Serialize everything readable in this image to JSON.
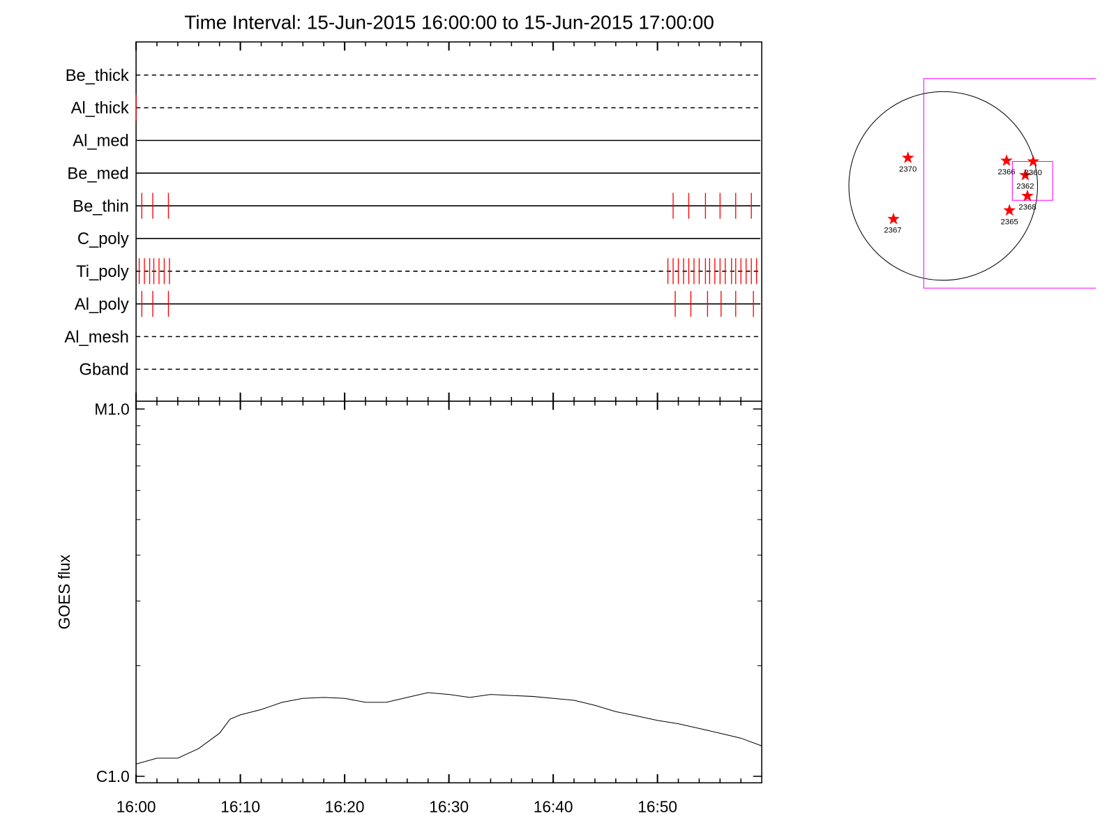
{
  "chart_data": [
    {
      "type": "timeline",
      "title": "Time Interval: 15-Jun-2015 16:00:00 to 15-Jun-2015 17:00:00",
      "categories": [
        "Be_thick",
        "Al_thick",
        "Al_med",
        "Be_med",
        "Be_thin",
        "C_poly",
        "Ti_poly",
        "Al_poly",
        "Al_mesh",
        "Gband"
      ],
      "line_styles": [
        "dashed",
        "dashed",
        "solid",
        "solid",
        "solid",
        "solid",
        "dashed",
        "solid",
        "dashed",
        "dashed"
      ],
      "events": [
        [],
        [
          0
        ],
        [],
        [],
        [
          0.55,
          1.6,
          3.1,
          51.5,
          53.0,
          54.6,
          56.0,
          57.5,
          59.0
        ],
        [],
        [
          0.3,
          0.8,
          1.3,
          1.7,
          2.2,
          2.7,
          3.2,
          51.0,
          51.5,
          52.0,
          52.5,
          53.0,
          53.5,
          54.0,
          54.6,
          55.0,
          55.5,
          56.0,
          56.5,
          57.1,
          57.5,
          58.0,
          58.5,
          59.0,
          59.5
        ],
        [
          0.55,
          1.6,
          3.1,
          51.7,
          53.2,
          54.8,
          56.1,
          57.5,
          59.2
        ],
        [],
        []
      ],
      "event_color": "#ff0000",
      "xlim": [
        0,
        60
      ],
      "xticks": [
        0,
        10,
        20,
        30,
        40,
        50
      ],
      "xminorticks": [
        2,
        4,
        6,
        8,
        12,
        14,
        16,
        18,
        22,
        24,
        26,
        28,
        32,
        34,
        36,
        38,
        42,
        44,
        46,
        48,
        52,
        54,
        56,
        58
      ]
    },
    {
      "type": "line",
      "ylabel": "GOES flux",
      "log_scale": true,
      "x": [
        0,
        2,
        4,
        6,
        8,
        9,
        10,
        12,
        14,
        16,
        18,
        20,
        22,
        24,
        26,
        28,
        30,
        32,
        34,
        36,
        38,
        40,
        42,
        44,
        46,
        48,
        50,
        52,
        54,
        56,
        58,
        60
      ],
      "values": [
        1.08e-06,
        1.12e-06,
        1.12e-06,
        1.19e-06,
        1.31e-06,
        1.43e-06,
        1.47e-06,
        1.52e-06,
        1.59e-06,
        1.63e-06,
        1.64e-06,
        1.63e-06,
        1.59e-06,
        1.59e-06,
        1.64e-06,
        1.69e-06,
        1.67e-06,
        1.64e-06,
        1.67e-06,
        1.66e-06,
        1.65e-06,
        1.63e-06,
        1.61e-06,
        1.56e-06,
        1.5e-06,
        1.46e-06,
        1.42e-06,
        1.39e-06,
        1.35e-06,
        1.31e-06,
        1.27e-06,
        1.21e-06
      ],
      "color": "#000000",
      "xlim": [
        0,
        60
      ],
      "xticks": [
        {
          "value": 0,
          "label": "16:00"
        },
        {
          "value": 10,
          "label": "16:10"
        },
        {
          "value": 20,
          "label": "16:20"
        },
        {
          "value": 30,
          "label": "16:30"
        },
        {
          "value": 40,
          "label": "16:40"
        },
        {
          "value": 50,
          "label": "16:50"
        }
      ],
      "xminorticks": [
        2,
        4,
        6,
        8,
        12,
        14,
        16,
        18,
        22,
        24,
        26,
        28,
        32,
        34,
        36,
        38,
        42,
        44,
        46,
        48,
        52,
        54,
        56,
        58
      ],
      "ylim": [
        9.6e-07,
        1.05e-05
      ],
      "yticks": [
        {
          "value": 1e-06,
          "label": "C1.0"
        },
        {
          "value": 1e-05,
          "label": "M1.0"
        }
      ],
      "yminorticks": [
        2e-06,
        3e-06,
        4e-06,
        5e-06,
        6e-06,
        7e-06,
        8e-06,
        9e-06
      ]
    },
    {
      "type": "map",
      "regions": [
        "2370",
        "2366",
        "2360",
        "2362",
        "2368",
        "2365",
        "2367"
      ],
      "disk_color": "#000000",
      "box_color": "#ff00ff",
      "marker_color": "#ff0000"
    }
  ]
}
